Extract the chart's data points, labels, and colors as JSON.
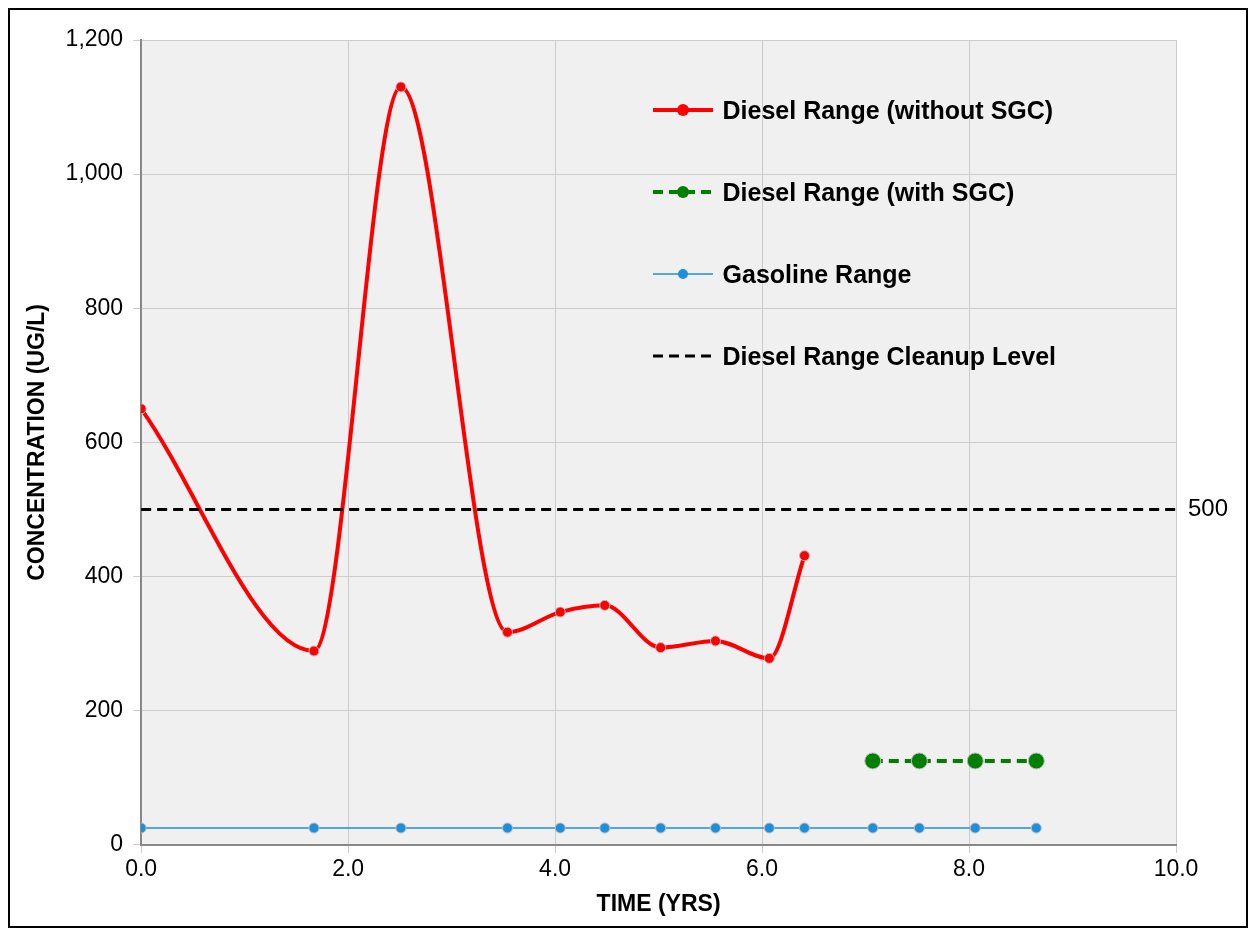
{
  "chart_data": {
    "type": "line",
    "xlabel": "TIME (YRS)",
    "ylabel": "CONCENTRATION (UG/L)",
    "series": [
      {
        "name": "Diesel Range (without SGC)",
        "color": "#ff0000",
        "x": [
          0,
          1.67,
          2.51,
          3.54,
          4.05,
          4.48,
          5.02,
          5.55,
          6.07,
          6.41
        ],
        "values": [
          650,
          289,
          1130,
          317,
          347,
          357,
          294,
          304,
          278,
          431
        ]
      },
      {
        "name": "Diesel Range (with SGC)",
        "color": "#008000",
        "line_style": "dashed",
        "x": [
          7.07,
          7.52,
          8.06,
          8.65
        ],
        "values": [
          125,
          125,
          125,
          125
        ]
      },
      {
        "name": "Gasoline Range",
        "color": "#1f8fdd",
        "x": [
          0,
          1.67,
          2.51,
          3.54,
          4.05,
          4.48,
          5.02,
          5.55,
          6.07,
          6.41,
          7.07,
          7.52,
          8.06,
          8.65
        ],
        "values": [
          25,
          25,
          25,
          25,
          25,
          25,
          25,
          25,
          25,
          25,
          25,
          25,
          25,
          25
        ]
      }
    ],
    "ref_lines": [
      {
        "axis": "y",
        "value": 500,
        "label": "Diesel Range Cleanup Level",
        "color": "#000000",
        "line_style": "dashed"
      }
    ],
    "annotations": [
      "500"
    ],
    "xlim": [
      0,
      10
    ],
    "xticks": [
      {
        "value": 0,
        "label": "0.0"
      },
      {
        "value": 2,
        "label": "2.0"
      },
      {
        "value": 4,
        "label": "4.0"
      },
      {
        "value": 6,
        "label": "6.0"
      },
      {
        "value": 8,
        "label": "8.0"
      },
      {
        "value": 10,
        "label": "10.0"
      }
    ],
    "ylim": [
      0,
      1200
    ],
    "yticks": [
      0,
      200,
      400,
      600,
      800,
      {
        "value": 1000,
        "label": "1,000"
      },
      {
        "value": 1200,
        "label": "1,200"
      }
    ],
    "grid": true,
    "legend": "top right",
    "marker": "circle"
  }
}
